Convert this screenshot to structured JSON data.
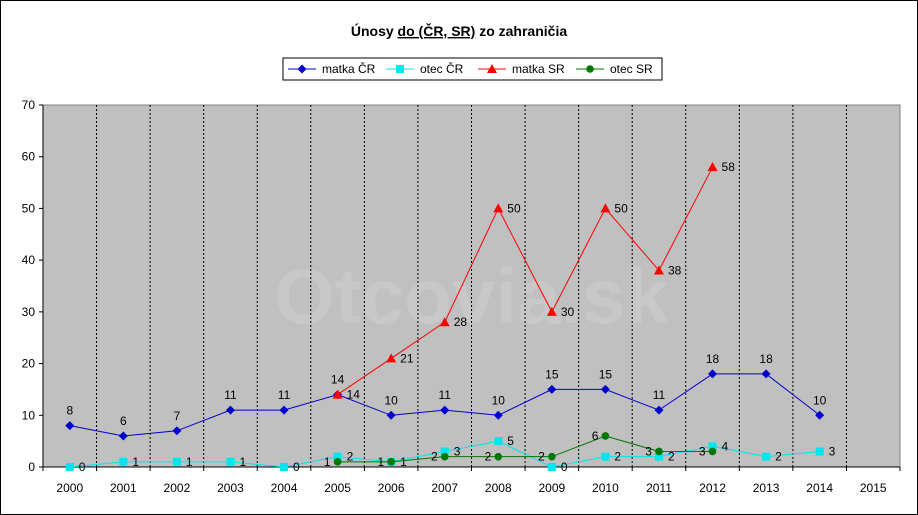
{
  "chart_data": {
    "type": "line",
    "title": "Únosy do (ČR, SR) zo zahraničia",
    "title_underlined_part": "do (ČR, SR)",
    "watermark": "Otcovia.sk",
    "categories": [
      "2000",
      "2001",
      "2002",
      "2003",
      "2004",
      "2005",
      "2006",
      "2007",
      "2008",
      "2009",
      "2010",
      "2011",
      "2012",
      "2013",
      "2014",
      "2015"
    ],
    "ylim": [
      0,
      70
    ],
    "yticks": [
      0,
      10,
      20,
      30,
      40,
      50,
      60,
      70
    ],
    "grid": "vertical dashed",
    "legend_position": "top",
    "plot_background": "#c0c0c0",
    "series": [
      {
        "name": "matka ČR",
        "color": "#0000cc",
        "marker": "diamond",
        "values": [
          8,
          6,
          7,
          11,
          11,
          14,
          10,
          11,
          10,
          15,
          15,
          11,
          18,
          18,
          10,
          null
        ]
      },
      {
        "name": "otec ČR",
        "color": "#00e5ee",
        "marker": "square",
        "values": [
          0,
          1,
          1,
          1,
          0,
          2,
          1,
          3,
          5,
          0,
          2,
          2,
          4,
          2,
          3,
          null
        ]
      },
      {
        "name": "matka SR",
        "color": "#ff0000",
        "marker": "triangle",
        "values": [
          null,
          null,
          null,
          null,
          null,
          14,
          21,
          28,
          50,
          30,
          50,
          38,
          58,
          null,
          null,
          null
        ]
      },
      {
        "name": "otec SR",
        "color": "#007700",
        "marker": "circle",
        "values": [
          null,
          null,
          null,
          null,
          null,
          1,
          1,
          2,
          2,
          2,
          6,
          3,
          3,
          null,
          null,
          null
        ]
      }
    ]
  }
}
